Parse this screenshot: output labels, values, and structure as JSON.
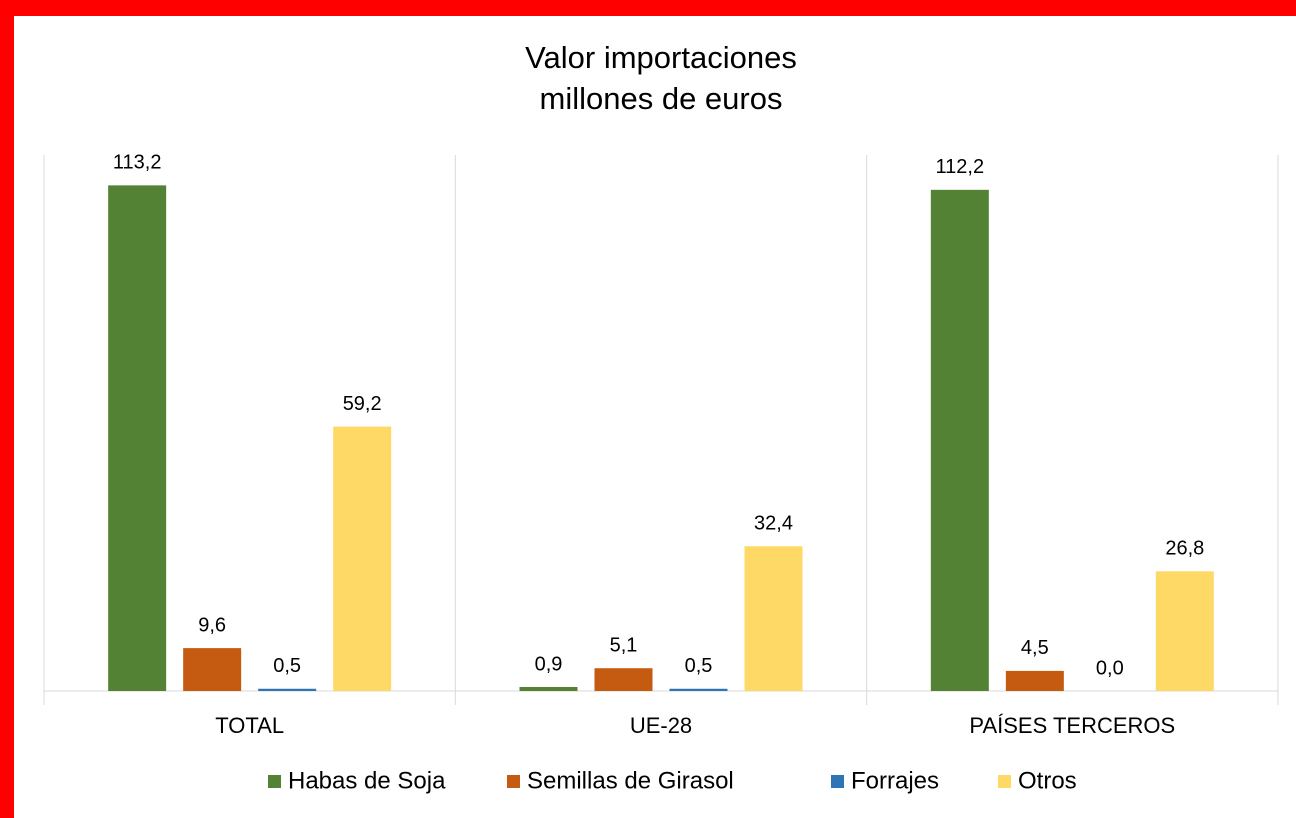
{
  "chart_data": {
    "type": "bar",
    "title": "Valor importaciones",
    "subtitle": "millones de euros",
    "categories": [
      "TOTAL",
      "UE-28",
      "PAÍSES TERCEROS"
    ],
    "ylim": [
      0,
      120
    ],
    "series": [
      {
        "name": "Habas de Soja",
        "color": "#548235",
        "values": [
          113.2,
          0.9,
          112.2
        ],
        "value_labels": [
          "113,2",
          "0,9",
          "112,2"
        ]
      },
      {
        "name": "Semillas de Girasol",
        "color": "#c55a11",
        "values": [
          9.6,
          5.1,
          4.5
        ],
        "value_labels": [
          "9,6",
          "5,1",
          "4,5"
        ]
      },
      {
        "name": "Forrajes",
        "color": "#2e75b6",
        "values": [
          0.5,
          0.5,
          0.0
        ],
        "value_labels": [
          "0,5",
          "0,5",
          "0,0"
        ]
      },
      {
        "name": "Otros",
        "color": "#ffd966",
        "values": [
          59.2,
          32.4,
          26.8
        ],
        "value_labels": [
          "59,2",
          "32,4",
          "26,8"
        ]
      }
    ]
  }
}
